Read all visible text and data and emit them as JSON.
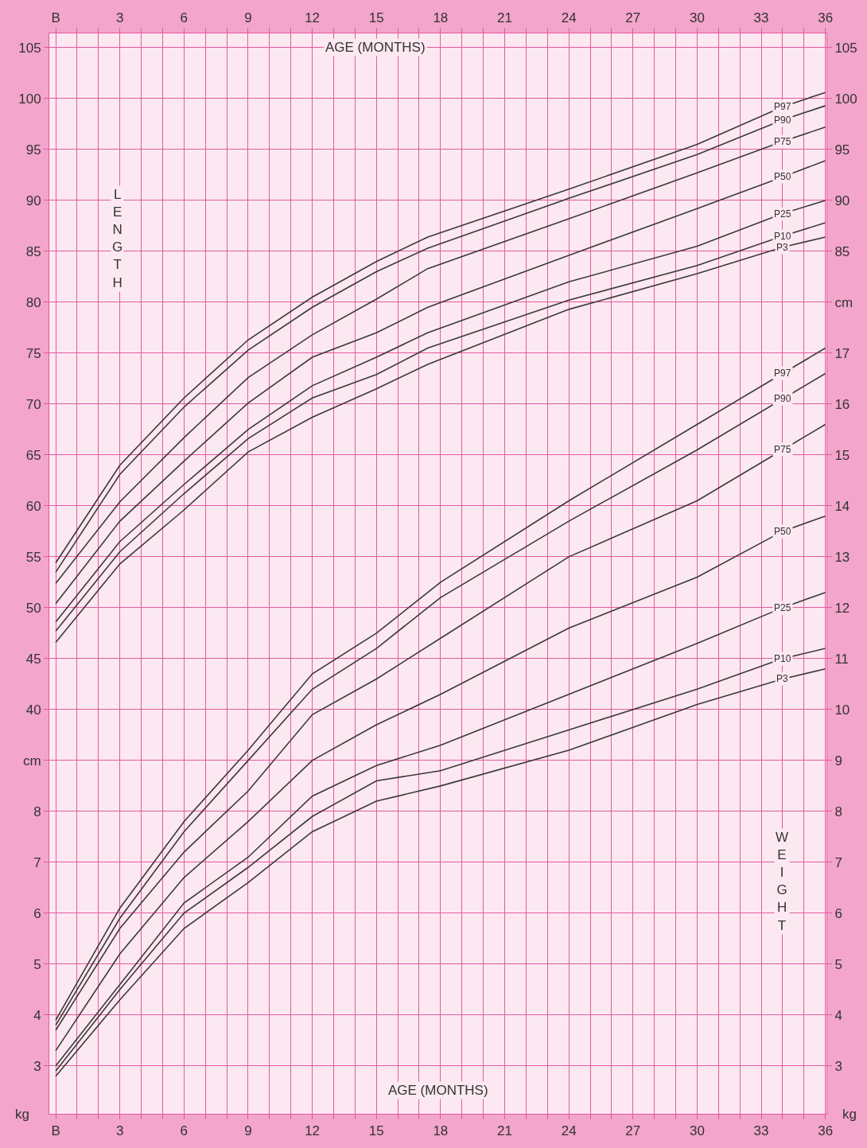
{
  "chart_data": [
    {
      "type": "line",
      "xlabel": "AGE (MONTHS)",
      "annotations": [
        "LENGTH"
      ],
      "xlim": [
        -0.3,
        36.05
      ],
      "xticks": [
        {
          "value": 0,
          "label": "B"
        },
        {
          "value": 1,
          "label": null
        },
        {
          "value": 2,
          "label": null
        },
        3,
        {
          "value": 4,
          "label": null
        },
        {
          "value": 5,
          "label": null
        },
        6,
        {
          "value": 7,
          "label": null
        },
        {
          "value": 8,
          "label": null
        },
        9,
        {
          "value": 10,
          "label": null
        },
        {
          "value": 11,
          "label": null
        },
        12,
        {
          "value": 13,
          "label": null
        },
        {
          "value": 14,
          "label": null
        },
        15,
        {
          "value": 16,
          "label": null
        },
        {
          "value": 17,
          "label": null
        },
        18,
        {
          "value": 19,
          "label": null
        },
        {
          "value": 20,
          "label": null
        },
        21,
        {
          "value": 22,
          "label": null
        },
        {
          "value": 23,
          "label": null
        },
        24,
        {
          "value": 25,
          "label": null
        },
        {
          "value": 26,
          "label": null
        },
        27,
        {
          "value": 28,
          "label": null
        },
        {
          "value": 29,
          "label": null
        },
        30,
        {
          "value": 31,
          "label": null
        },
        {
          "value": 32,
          "label": null
        },
        33,
        {
          "value": 34,
          "label": null
        },
        {
          "value": 35,
          "label": null
        },
        36
      ],
      "ylim": [
        0.3,
        106.4
      ],
      "yticks": [
        {
          "value": 35,
          "label": "cm"
        },
        40,
        45,
        50,
        55,
        60,
        65,
        70,
        75,
        80,
        85,
        90,
        95,
        100,
        105
      ],
      "y2lim": [
        0.3,
        106.4
      ],
      "y2ticks": [
        {
          "value": 80,
          "label": "cm"
        },
        85,
        90,
        95,
        100,
        105
      ],
      "grid": true,
      "legend": false,
      "marker": "none",
      "line_style": "solid",
      "series": [
        {
          "name": "P97",
          "color": "#3a3a3a",
          "x": [
            0,
            3,
            6,
            9,
            12,
            15,
            17.4,
            24,
            30,
            34,
            36
          ],
          "values": [
            54.4,
            64.0,
            70.6,
            76.3,
            80.5,
            84.0,
            86.4,
            91.1,
            95.5,
            99.2,
            100.6
          ]
        },
        {
          "name": "P90",
          "color": "#3a3a3a",
          "x": [
            0,
            3,
            6,
            9,
            12,
            15,
            17.4,
            24,
            30,
            34,
            36
          ],
          "values": [
            53.5,
            63.1,
            69.7,
            75.3,
            79.5,
            83.0,
            85.3,
            90.2,
            94.5,
            97.9,
            99.3
          ]
        },
        {
          "name": "P75",
          "color": "#3a3a3a",
          "x": [
            0,
            3,
            6,
            9,
            12,
            15,
            17.4,
            24,
            30,
            34,
            36
          ],
          "values": [
            52.4,
            60.4,
            66.7,
            72.6,
            76.8,
            80.3,
            83.3,
            88.2,
            92.7,
            95.8,
            97.2
          ]
        },
        {
          "name": "P50",
          "color": "#3a3a3a",
          "x": [
            0,
            3,
            6,
            9,
            12,
            15,
            17.4,
            24,
            30,
            34,
            36
          ],
          "values": [
            50.4,
            58.5,
            64.4,
            70.1,
            74.6,
            77.0,
            79.5,
            84.6,
            89.2,
            92.3,
            93.9
          ]
        },
        {
          "name": "P25",
          "color": "#3a3a3a",
          "x": [
            0,
            3,
            6,
            9,
            12,
            15,
            17.4,
            24,
            30,
            34,
            36
          ],
          "values": [
            48.6,
            56.5,
            62.1,
            67.5,
            71.8,
            74.6,
            77.0,
            82.0,
            85.5,
            88.7,
            90.0
          ]
        },
        {
          "name": "P10",
          "color": "#3a3a3a",
          "x": [
            0,
            3,
            6,
            9,
            12,
            15,
            17.4,
            24,
            30,
            34,
            36
          ],
          "values": [
            47.7,
            55.5,
            61.2,
            66.6,
            70.6,
            72.9,
            75.5,
            80.2,
            83.6,
            86.5,
            87.8
          ]
        },
        {
          "name": "P3",
          "color": "#3a3a3a",
          "x": [
            0,
            3,
            6,
            9,
            12,
            15,
            17.4,
            24,
            30,
            34,
            36
          ],
          "values": [
            46.6,
            54.3,
            59.6,
            65.3,
            68.7,
            71.5,
            73.9,
            79.3,
            82.8,
            85.4,
            86.4
          ]
        }
      ]
    },
    {
      "type": "line",
      "xlabel": "AGE (MONTHS)",
      "annotations": [
        "WEIGHT",
        "kg",
        "kg"
      ],
      "xlim": [
        -0.3,
        36.05
      ],
      "xticks": [
        {
          "value": 0,
          "label": "B"
        },
        {
          "value": 1,
          "label": null
        },
        {
          "value": 2,
          "label": null
        },
        3,
        {
          "value": 4,
          "label": null
        },
        {
          "value": 5,
          "label": null
        },
        6,
        {
          "value": 7,
          "label": null
        },
        {
          "value": 8,
          "label": null
        },
        9,
        {
          "value": 10,
          "label": null
        },
        {
          "value": 11,
          "label": null
        },
        12,
        {
          "value": 13,
          "label": null
        },
        {
          "value": 14,
          "label": null
        },
        15,
        {
          "value": 16,
          "label": null
        },
        {
          "value": 17,
          "label": null
        },
        18,
        {
          "value": 19,
          "label": null
        },
        {
          "value": 20,
          "label": null
        },
        21,
        {
          "value": 22,
          "label": null
        },
        {
          "value": 23,
          "label": null
        },
        24,
        {
          "value": 25,
          "label": null
        },
        {
          "value": 26,
          "label": null
        },
        27,
        {
          "value": 28,
          "label": null
        },
        {
          "value": 29,
          "label": null
        },
        30,
        {
          "value": 31,
          "label": null
        },
        {
          "value": 32,
          "label": null
        },
        33,
        {
          "value": 34,
          "label": null
        },
        {
          "value": 35,
          "label": null
        },
        36
      ],
      "ylim": [
        2.06,
        23.28
      ],
      "yticks": [
        3,
        4,
        5,
        6,
        7,
        8
      ],
      "y2lim": [
        2.06,
        23.28
      ],
      "y2ticks": [
        3,
        4,
        5,
        6,
        7,
        8,
        9,
        10,
        11,
        12,
        13,
        14,
        15,
        16,
        17
      ],
      "grid": true,
      "legend": false,
      "marker": "none",
      "line_style": "solid",
      "series": [
        {
          "name": "P97",
          "color": "#3a3a3a",
          "x": [
            0,
            3,
            6,
            9,
            12,
            15,
            18,
            24,
            30,
            34,
            36
          ],
          "values": [
            3.9,
            6.1,
            7.8,
            9.2,
            10.7,
            11.5,
            12.5,
            14.1,
            15.6,
            16.6,
            17.1
          ]
        },
        {
          "name": "P90",
          "color": "#3a3a3a",
          "x": [
            0,
            3,
            6,
            9,
            12,
            15,
            18,
            24,
            30,
            34,
            36
          ],
          "values": [
            3.8,
            5.9,
            7.6,
            9.0,
            10.4,
            11.2,
            12.2,
            13.7,
            15.1,
            16.1,
            16.6
          ]
        },
        {
          "name": "P75",
          "color": "#3a3a3a",
          "x": [
            0,
            3,
            6,
            9,
            12,
            15,
            18,
            24,
            30,
            34,
            36
          ],
          "values": [
            3.7,
            5.7,
            7.2,
            8.4,
            9.9,
            10.6,
            11.4,
            13.0,
            14.1,
            15.1,
            15.6
          ]
        },
        {
          "name": "P50",
          "color": "#3a3a3a",
          "x": [
            0,
            3,
            6,
            9,
            12,
            15,
            18,
            24,
            30,
            34,
            36
          ],
          "values": [
            3.3,
            5.2,
            6.7,
            7.8,
            9.0,
            9.7,
            10.3,
            11.6,
            12.6,
            13.5,
            13.8
          ]
        },
        {
          "name": "P25",
          "color": "#3a3a3a",
          "x": [
            0,
            3,
            6,
            9,
            12,
            15,
            18,
            24,
            30,
            34,
            36
          ],
          "values": [
            3.0,
            4.6,
            6.2,
            7.1,
            8.3,
            8.9,
            9.3,
            10.3,
            11.3,
            12.0,
            12.3
          ]
        },
        {
          "name": "P10",
          "color": "#3a3a3a",
          "x": [
            0,
            3,
            6,
            9,
            12,
            15,
            18,
            24,
            30,
            34,
            36
          ],
          "values": [
            2.9,
            4.5,
            6.0,
            6.9,
            7.9,
            8.6,
            8.8,
            9.6,
            10.4,
            11.0,
            11.2
          ]
        },
        {
          "name": "P3",
          "color": "#3a3a3a",
          "x": [
            0,
            3,
            6,
            9,
            12,
            15,
            18,
            24,
            30,
            34,
            36
          ],
          "values": [
            2.8,
            4.3,
            5.7,
            6.6,
            7.6,
            8.2,
            8.5,
            9.2,
            10.1,
            10.6,
            10.8
          ]
        }
      ]
    }
  ]
}
